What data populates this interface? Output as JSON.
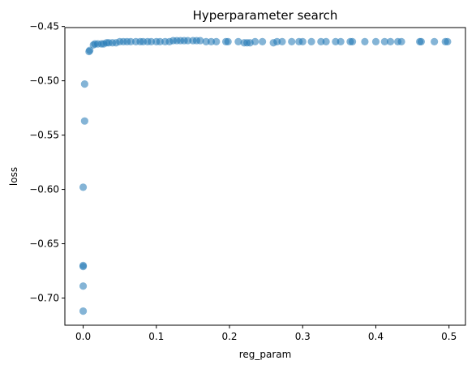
{
  "chart_data": {
    "type": "scatter",
    "title": "Hyperparameter search",
    "xlabel": "reg_param",
    "ylabel": "loss",
    "xlim": [
      -0.025,
      0.5225
    ],
    "ylim": [
      -0.725,
      -0.451
    ],
    "xticks": [
      0.0,
      0.1,
      0.2,
      0.3,
      0.4,
      0.5
    ],
    "xtick_labels": [
      "0.0",
      "0.1",
      "0.2",
      "0.3",
      "0.4",
      "0.5"
    ],
    "yticks": [
      -0.7,
      -0.65,
      -0.6,
      -0.55,
      -0.5,
      -0.45
    ],
    "ytick_labels": [
      "−0.70",
      "−0.65",
      "−0.60",
      "−0.55",
      "−0.50",
      "−0.45"
    ],
    "grid": false,
    "color": "#1f77b4",
    "series": [
      {
        "points": [
          [
            0.0,
            -0.712
          ],
          [
            0.0,
            -0.689
          ],
          [
            0.0,
            -0.671
          ],
          [
            0.0,
            -0.67
          ],
          [
            0.0,
            -0.598
          ],
          [
            0.002,
            -0.537
          ],
          [
            0.002,
            -0.503
          ],
          [
            0.008,
            -0.473
          ],
          [
            0.009,
            -0.472
          ],
          [
            0.014,
            -0.467
          ],
          [
            0.016,
            -0.466
          ],
          [
            0.02,
            -0.466
          ],
          [
            0.025,
            -0.466
          ],
          [
            0.028,
            -0.466
          ],
          [
            0.032,
            -0.465
          ],
          [
            0.035,
            -0.465
          ],
          [
            0.04,
            -0.465
          ],
          [
            0.045,
            -0.465
          ],
          [
            0.05,
            -0.464
          ],
          [
            0.055,
            -0.464
          ],
          [
            0.06,
            -0.464
          ],
          [
            0.065,
            -0.464
          ],
          [
            0.072,
            -0.464
          ],
          [
            0.078,
            -0.464
          ],
          [
            0.082,
            -0.464
          ],
          [
            0.088,
            -0.464
          ],
          [
            0.093,
            -0.464
          ],
          [
            0.1,
            -0.464
          ],
          [
            0.105,
            -0.464
          ],
          [
            0.112,
            -0.464
          ],
          [
            0.118,
            -0.464
          ],
          [
            0.123,
            -0.463
          ],
          [
            0.128,
            -0.463
          ],
          [
            0.133,
            -0.463
          ],
          [
            0.138,
            -0.463
          ],
          [
            0.143,
            -0.463
          ],
          [
            0.15,
            -0.463
          ],
          [
            0.155,
            -0.463
          ],
          [
            0.16,
            -0.463
          ],
          [
            0.168,
            -0.464
          ],
          [
            0.175,
            -0.464
          ],
          [
            0.182,
            -0.464
          ],
          [
            0.195,
            -0.464
          ],
          [
            0.198,
            -0.464
          ],
          [
            0.212,
            -0.464
          ],
          [
            0.22,
            -0.465
          ],
          [
            0.224,
            -0.465
          ],
          [
            0.228,
            -0.465
          ],
          [
            0.235,
            -0.464
          ],
          [
            0.245,
            -0.464
          ],
          [
            0.26,
            -0.465
          ],
          [
            0.265,
            -0.464
          ],
          [
            0.272,
            -0.464
          ],
          [
            0.285,
            -0.464
          ],
          [
            0.295,
            -0.464
          ],
          [
            0.3,
            -0.464
          ],
          [
            0.312,
            -0.464
          ],
          [
            0.325,
            -0.464
          ],
          [
            0.332,
            -0.464
          ],
          [
            0.345,
            -0.464
          ],
          [
            0.352,
            -0.464
          ],
          [
            0.365,
            -0.464
          ],
          [
            0.368,
            -0.464
          ],
          [
            0.385,
            -0.464
          ],
          [
            0.4,
            -0.464
          ],
          [
            0.412,
            -0.464
          ],
          [
            0.42,
            -0.464
          ],
          [
            0.43,
            -0.464
          ],
          [
            0.435,
            -0.464
          ],
          [
            0.46,
            -0.464
          ],
          [
            0.462,
            -0.464
          ],
          [
            0.48,
            -0.464
          ],
          [
            0.495,
            -0.464
          ],
          [
            0.498,
            -0.464
          ]
        ]
      }
    ]
  }
}
